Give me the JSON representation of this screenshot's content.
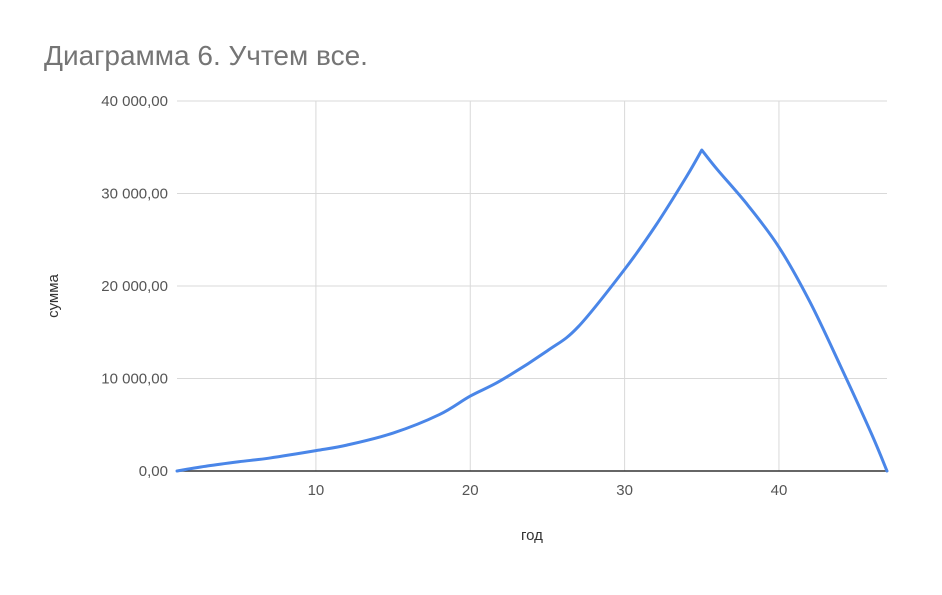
{
  "chart_data": {
    "type": "line",
    "title": "Диаграмма 6. Учтем все.",
    "xlabel": "год",
    "ylabel": "сумма",
    "xlim": [
      1,
      47
    ],
    "ylim": [
      0,
      40000
    ],
    "x_ticks": [
      10,
      20,
      30,
      40
    ],
    "x_tick_labels": [
      "10",
      "20",
      "30",
      "40"
    ],
    "y_ticks": [
      0,
      10000,
      20000,
      30000,
      40000
    ],
    "y_tick_labels": [
      "0,00",
      "10 000,00",
      "20 000,00",
      "30 000,00",
      "40 000,00"
    ],
    "grid": true,
    "legend": "none",
    "color": "#4a86e8",
    "series": [
      {
        "x": [
          1,
          3,
          5,
          7,
          10,
          12,
          15,
          18,
          20,
          22,
          25,
          27,
          30,
          32,
          34,
          35,
          36,
          38,
          40,
          42,
          44,
          46,
          47
        ],
        "y": [
          0,
          550,
          1000,
          1400,
          2200,
          2800,
          4100,
          6100,
          8100,
          9800,
          13000,
          15600,
          21800,
          26500,
          31800,
          34700,
          32600,
          28700,
          24200,
          18300,
          11300,
          4000,
          0
        ]
      }
    ]
  }
}
